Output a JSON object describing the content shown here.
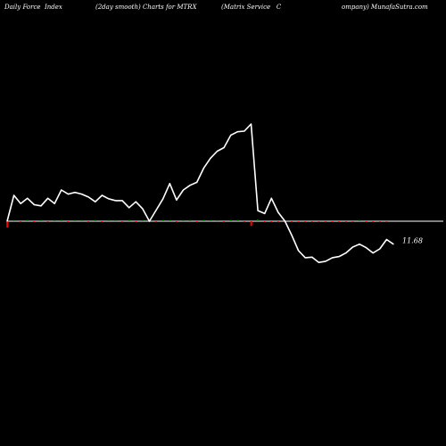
{
  "header": {
    "left": "Daily Force  Index",
    "center": "(2day smooth) Charts for MTRX",
    "right": "(Matrix Service   C",
    "right2": "ompany) MunafaSutra.com"
  },
  "colors": {
    "background": "#000000",
    "line": "#ffffff",
    "zero_line": "#ffffff",
    "positive_bar": "#00aa00",
    "negative_bar": "#ff0000"
  },
  "chart_data": {
    "type": "line",
    "title": "Daily Force  Index (2day smooth) Charts for MTRX",
    "ylim": [
      -14,
      18
    ],
    "zero": 0,
    "last_value_label": "11.68",
    "series": [
      {
        "values": [
          0.0,
          4.4,
          3.0,
          3.9,
          2.8,
          2.6,
          3.9,
          3.0,
          5.3,
          4.6,
          4.9,
          4.6,
          4.1,
          3.3,
          4.4,
          3.8,
          3.5,
          3.5,
          2.3,
          3.3,
          2.1,
          0.0,
          1.9,
          3.8,
          6.4,
          3.6,
          5.3,
          6.1,
          6.6,
          9.0,
          10.7,
          11.9,
          12.5,
          14.6,
          15.2,
          15.3,
          16.5,
          1.8,
          1.3,
          3.9,
          1.5,
          0.0,
          -2.4,
          -5.0,
          -6.2,
          -6.1,
          -7.0,
          -6.8,
          -6.2,
          -6.0,
          -5.4,
          -4.4,
          -3.9,
          -4.5,
          -5.4,
          -4.7,
          -3.1,
          -3.9
        ]
      }
    ],
    "volume_bars": [
      -1.2,
      0.2,
      -0.2,
      0.2,
      -0.2,
      0.2,
      -0.2,
      0.2,
      0.2,
      -0.2,
      0.2,
      0.2,
      -0.2,
      0.2,
      -0.2,
      0.2,
      0.2,
      -0.2,
      0.2,
      -0.2,
      0.2,
      0.2,
      -0.2,
      0.2,
      0.2,
      -0.2,
      0.2,
      0.2,
      -0.2,
      0.2,
      0.2,
      0.2,
      -0.2,
      0.2,
      0.2,
      -0.2,
      -0.9,
      0.3,
      -0.2,
      -0.2,
      -0.2,
      -0.2,
      -0.2,
      -0.2,
      -0.2,
      -0.2,
      -0.2,
      -0.2,
      -0.2,
      -0.2,
      -0.2,
      -0.2,
      0.2,
      -0.2,
      -0.2,
      -0.2,
      -0.2
    ]
  }
}
